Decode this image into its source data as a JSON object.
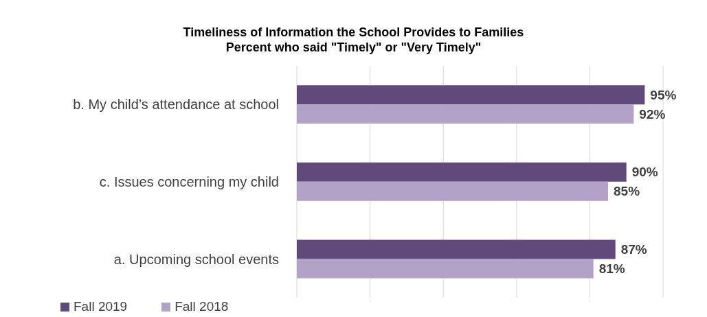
{
  "chart_data": {
    "type": "bar",
    "orientation": "horizontal",
    "title": "Timeliness of Information the School Provides to Families",
    "subtitle": "Percent who said \"Timely\" or \"Very Timely\"",
    "categories": [
      "b.  My child’s attendance at school",
      "c.  Issues concerning my child",
      "a.  Upcoming school events"
    ],
    "series": [
      {
        "name": "Fall 2019",
        "color": "#604a7b",
        "values": [
          95,
          90,
          87
        ],
        "value_labels": [
          "95%",
          "90%",
          "87%"
        ]
      },
      {
        "name": "Fall 2018",
        "color": "#b3a2c7",
        "values": [
          92,
          85,
          81
        ],
        "value_labels": [
          "92%",
          "85%",
          "81%"
        ]
      }
    ],
    "xlim": [
      0,
      100
    ],
    "xticks": [
      {
        "value": 0,
        "label": null
      },
      {
        "value": 20,
        "label": null
      },
      {
        "value": 40,
        "label": null
      },
      {
        "value": 60,
        "label": null
      },
      {
        "value": 80,
        "label": null
      },
      {
        "value": 100,
        "label": null
      }
    ],
    "tick_labels": "y",
    "grid": "x",
    "legend": "bottom left"
  }
}
